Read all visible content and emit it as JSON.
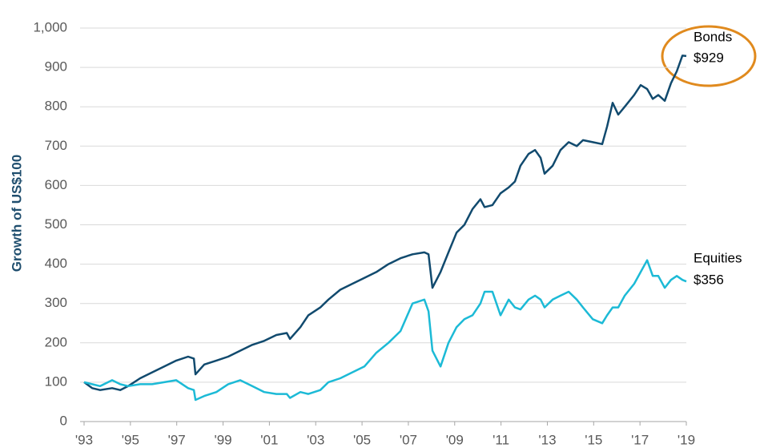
{
  "chart_data": {
    "type": "line",
    "y_label": "Growth of US$100",
    "annotations": [
      "Bonds",
      "$929",
      "Equities",
      "$356"
    ],
    "x": [
      1993.0,
      1993.35,
      1993.69,
      1994.21,
      1994.56,
      1994.9,
      1995.42,
      1995.94,
      1996.46,
      1996.98,
      1997.49,
      1997.74,
      1997.81,
      1998.19,
      1998.71,
      1999.22,
      1999.74,
      2000.26,
      2000.78,
      2001.3,
      2001.75,
      2001.89,
      2002.34,
      2002.68,
      2003.2,
      2003.55,
      2004.06,
      2004.58,
      2005.1,
      2005.62,
      2006.14,
      2006.66,
      2007.18,
      2007.69,
      2007.87,
      2008.04,
      2008.39,
      2008.73,
      2009.08,
      2009.42,
      2009.77,
      2010.11,
      2010.29,
      2010.63,
      2010.98,
      2011.33,
      2011.6,
      2011.84,
      2012.19,
      2012.47,
      2012.71,
      2012.88,
      2013.23,
      2013.57,
      2013.92,
      2014.27,
      2014.54,
      2014.96,
      2015.37,
      2015.58,
      2015.82,
      2016.06,
      2016.34,
      2016.75,
      2017.03,
      2017.31,
      2017.55,
      2017.79,
      2018.07,
      2018.34,
      2018.59,
      2018.83,
      2019.0
    ],
    "series": [
      {
        "name": "Bonds",
        "color": "#114a6e",
        "values": [
          100,
          85,
          80,
          85,
          80,
          90,
          110,
          125,
          140,
          155,
          165,
          160,
          120,
          145,
          155,
          165,
          180,
          195,
          205,
          220,
          225,
          210,
          240,
          270,
          290,
          310,
          335,
          350,
          365,
          380,
          400,
          415,
          425,
          430,
          425,
          340,
          380,
          430,
          480,
          500,
          540,
          565,
          545,
          550,
          580,
          595,
          610,
          650,
          680,
          690,
          670,
          630,
          650,
          690,
          710,
          700,
          715,
          710,
          705,
          750,
          810,
          780,
          800,
          830,
          855,
          845,
          820,
          830,
          815,
          860,
          890,
          930,
          929
        ]
      },
      {
        "name": "Equities",
        "color": "#1cbad6",
        "values": [
          100,
          95,
          90,
          105,
          95,
          90,
          95,
          95,
          100,
          105,
          85,
          80,
          55,
          65,
          75,
          95,
          105,
          90,
          75,
          70,
          70,
          60,
          75,
          70,
          80,
          100,
          110,
          125,
          140,
          175,
          200,
          230,
          300,
          310,
          280,
          180,
          140,
          200,
          240,
          260,
          270,
          300,
          330,
          330,
          270,
          310,
          290,
          285,
          310,
          320,
          310,
          290,
          310,
          320,
          330,
          310,
          290,
          260,
          250,
          270,
          290,
          290,
          320,
          350,
          380,
          410,
          370,
          370,
          340,
          360,
          370,
          360,
          356
        ]
      }
    ],
    "xlim": [
      1993,
      2019
    ],
    "xticks": [
      {
        "value": 1993,
        "label": "'93"
      },
      {
        "value": 1995,
        "label": "'95"
      },
      {
        "value": 1997,
        "label": "'97"
      },
      {
        "value": 1999,
        "label": "'99"
      },
      {
        "value": 2001,
        "label": "'01"
      },
      {
        "value": 2003,
        "label": "'03"
      },
      {
        "value": 2005,
        "label": "'05"
      },
      {
        "value": 2007,
        "label": "'07"
      },
      {
        "value": 2009,
        "label": "'09"
      },
      {
        "value": 2011,
        "label": "'11"
      },
      {
        "value": 2013,
        "label": "'13"
      },
      {
        "value": 2015,
        "label": "'15"
      },
      {
        "value": 2017,
        "label": "'17"
      },
      {
        "value": 2019,
        "label": "'19"
      }
    ],
    "ylim": [
      0,
      1000
    ],
    "yticks": [
      0,
      100,
      200,
      300,
      400,
      500,
      600,
      700,
      800,
      900,
      {
        "value": 1000,
        "label": "1,000"
      }
    ],
    "grid": true
  }
}
